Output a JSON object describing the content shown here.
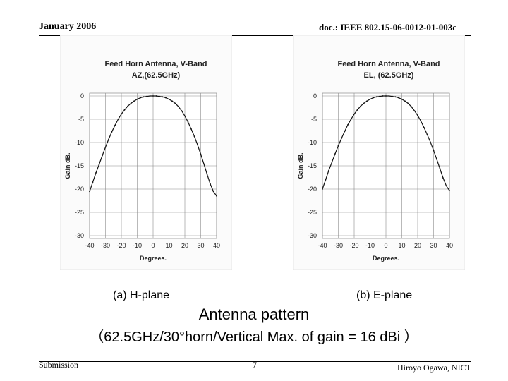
{
  "header": {
    "date": "January 2006",
    "doc_id": "doc.: IEEE 802.15-06-0012-01-003c"
  },
  "footer": {
    "left": "Submission",
    "page": "7",
    "author": "Hiroyo Ogawa, NICT"
  },
  "captions": {
    "a": "(a) H-plane",
    "b": "(b) E-plane"
  },
  "title": {
    "line1": "Antenna pattern",
    "line2": "（62.5GHz/30°horn/Vertical Max. of gain = 16 dBi ）"
  },
  "chart_data": [
    {
      "type": "line",
      "title": "Feed Horn Antenna, V-Band",
      "subtitle": "AZ,(62.5GHz)",
      "xlabel": "Degrees.",
      "ylabel": "Gain dB.",
      "xlim": [
        -40,
        40
      ],
      "ylim": [
        -30,
        0
      ],
      "xticks": [
        "-40",
        "-30",
        "-20",
        "-10",
        "0",
        "10",
        "20",
        "30",
        "40"
      ],
      "yticks": [
        "0",
        "-5",
        "-10",
        "-15",
        "-20",
        "-25",
        "-30"
      ],
      "grid": true,
      "x": [
        -40,
        -38,
        -36,
        -34,
        -32,
        -30,
        -28,
        -26,
        -24,
        -22,
        -20,
        -18,
        -16,
        -14,
        -12,
        -10,
        -8,
        -6,
        -4,
        -2,
        0,
        2,
        4,
        6,
        8,
        10,
        12,
        14,
        16,
        18,
        20,
        22,
        24,
        26,
        28,
        30,
        32,
        34,
        36,
        38,
        40
      ],
      "y": [
        -20.5,
        -18.5,
        -16.5,
        -14.7,
        -12.8,
        -11.0,
        -9.3,
        -7.7,
        -6.3,
        -5.0,
        -3.9,
        -3.0,
        -2.2,
        -1.6,
        -1.1,
        -0.7,
        -0.4,
        -0.2,
        -0.1,
        0.0,
        0.0,
        0.0,
        -0.1,
        -0.2,
        -0.4,
        -0.7,
        -1.1,
        -1.6,
        -2.3,
        -3.2,
        -4.3,
        -5.6,
        -7.1,
        -8.7,
        -10.5,
        -12.5,
        -14.6,
        -16.8,
        -18.9,
        -20.5,
        -21.5
      ]
    },
    {
      "type": "line",
      "title": "Feed Horn Antenna, V-Band",
      "subtitle": "EL, (62.5GHz)",
      "xlabel": "Degrees.",
      "ylabel": "Gain dB.",
      "xlim": [
        -40,
        40
      ],
      "ylim": [
        -30,
        0
      ],
      "xticks": [
        "-40",
        "-30",
        "-20",
        "-10",
        "0",
        "10",
        "20",
        "30",
        "40"
      ],
      "yticks": [
        "0",
        "-5",
        "-10",
        "-15",
        "-20",
        "-25",
        "-30"
      ],
      "grid": true,
      "x": [
        -40,
        -38,
        -36,
        -34,
        -32,
        -30,
        -28,
        -26,
        -24,
        -22,
        -20,
        -18,
        -16,
        -14,
        -12,
        -10,
        -8,
        -6,
        -4,
        -2,
        0,
        2,
        4,
        6,
        8,
        10,
        12,
        14,
        16,
        18,
        20,
        22,
        24,
        26,
        28,
        30,
        32,
        34,
        36,
        38,
        40
      ],
      "y": [
        -20.0,
        -18.0,
        -16.0,
        -14.2,
        -12.4,
        -10.7,
        -9.1,
        -7.6,
        -6.2,
        -5.0,
        -3.9,
        -3.0,
        -2.2,
        -1.6,
        -1.1,
        -0.7,
        -0.4,
        -0.2,
        -0.1,
        0.0,
        0.0,
        0.0,
        -0.1,
        -0.2,
        -0.4,
        -0.7,
        -1.1,
        -1.6,
        -2.3,
        -3.2,
        -4.2,
        -5.4,
        -6.8,
        -8.3,
        -9.9,
        -11.7,
        -13.6,
        -15.6,
        -17.6,
        -19.3,
        -20.3
      ]
    }
  ]
}
